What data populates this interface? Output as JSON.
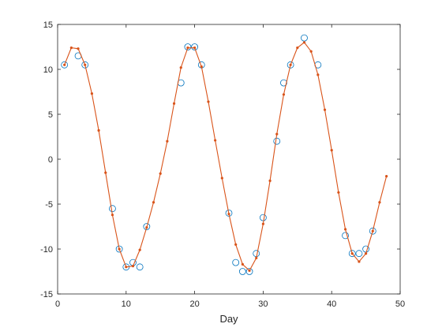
{
  "chart_data": {
    "type": "scatter",
    "xlabel": "Day",
    "ylabel": "",
    "title": "",
    "xlim": [
      0,
      50
    ],
    "ylim": [
      -15,
      15
    ],
    "xticks": [
      0,
      10,
      20,
      30,
      40,
      50
    ],
    "yticks": [
      -15,
      -10,
      -5,
      0,
      5,
      10,
      15
    ],
    "grid": false,
    "legend": "none",
    "series": [
      {
        "style": "circle-markers",
        "color": "#0072BD",
        "x": [
          1,
          3,
          4,
          8,
          9,
          10,
          11,
          12,
          13,
          18,
          19,
          20,
          21,
          25,
          26,
          27,
          28,
          29,
          30,
          32,
          33,
          34,
          36,
          38,
          42,
          43,
          44,
          45,
          46
        ],
        "y": [
          10.5,
          11.5,
          10.5,
          -5.5,
          -10,
          -12,
          -11.5,
          -12,
          -7.5,
          8.5,
          12.5,
          12.5,
          10.5,
          -6,
          -11.5,
          -12.5,
          -12.5,
          -10.5,
          -6.5,
          2,
          8.5,
          10.5,
          13.5,
          10.5,
          -8.5,
          -10.5,
          -10.5,
          -10,
          -8
        ]
      },
      {
        "style": "line-with-dots",
        "color": "#D95319",
        "x": [
          1,
          2,
          3,
          4,
          5,
          6,
          7,
          8,
          9,
          10,
          11,
          12,
          13,
          14,
          15,
          16,
          17,
          18,
          19,
          20,
          21,
          22,
          23,
          24,
          25,
          26,
          27,
          28,
          29,
          30,
          31,
          32,
          33,
          34,
          35,
          36,
          37,
          38,
          39,
          40,
          41,
          42,
          43,
          44,
          45,
          46,
          47,
          48
        ],
        "y": [
          10.5,
          12.4,
          12.3,
          10.5,
          7.3,
          3.2,
          -1.5,
          -6.2,
          -10.0,
          -12.0,
          -11.9,
          -10.1,
          -7.6,
          -4.8,
          -1.6,
          2.0,
          6.2,
          10.2,
          12.4,
          12.4,
          10.3,
          6.4,
          2.1,
          -2.1,
          -6.1,
          -9.5,
          -11.7,
          -12.4,
          -11.0,
          -7.2,
          -2.4,
          2.8,
          7.2,
          10.5,
          12.4,
          13.0,
          12.0,
          9.4,
          5.5,
          1.0,
          -3.7,
          -7.8,
          -10.5,
          -11.4,
          -10.5,
          -8.0,
          -4.8,
          -1.9
        ]
      }
    ]
  }
}
